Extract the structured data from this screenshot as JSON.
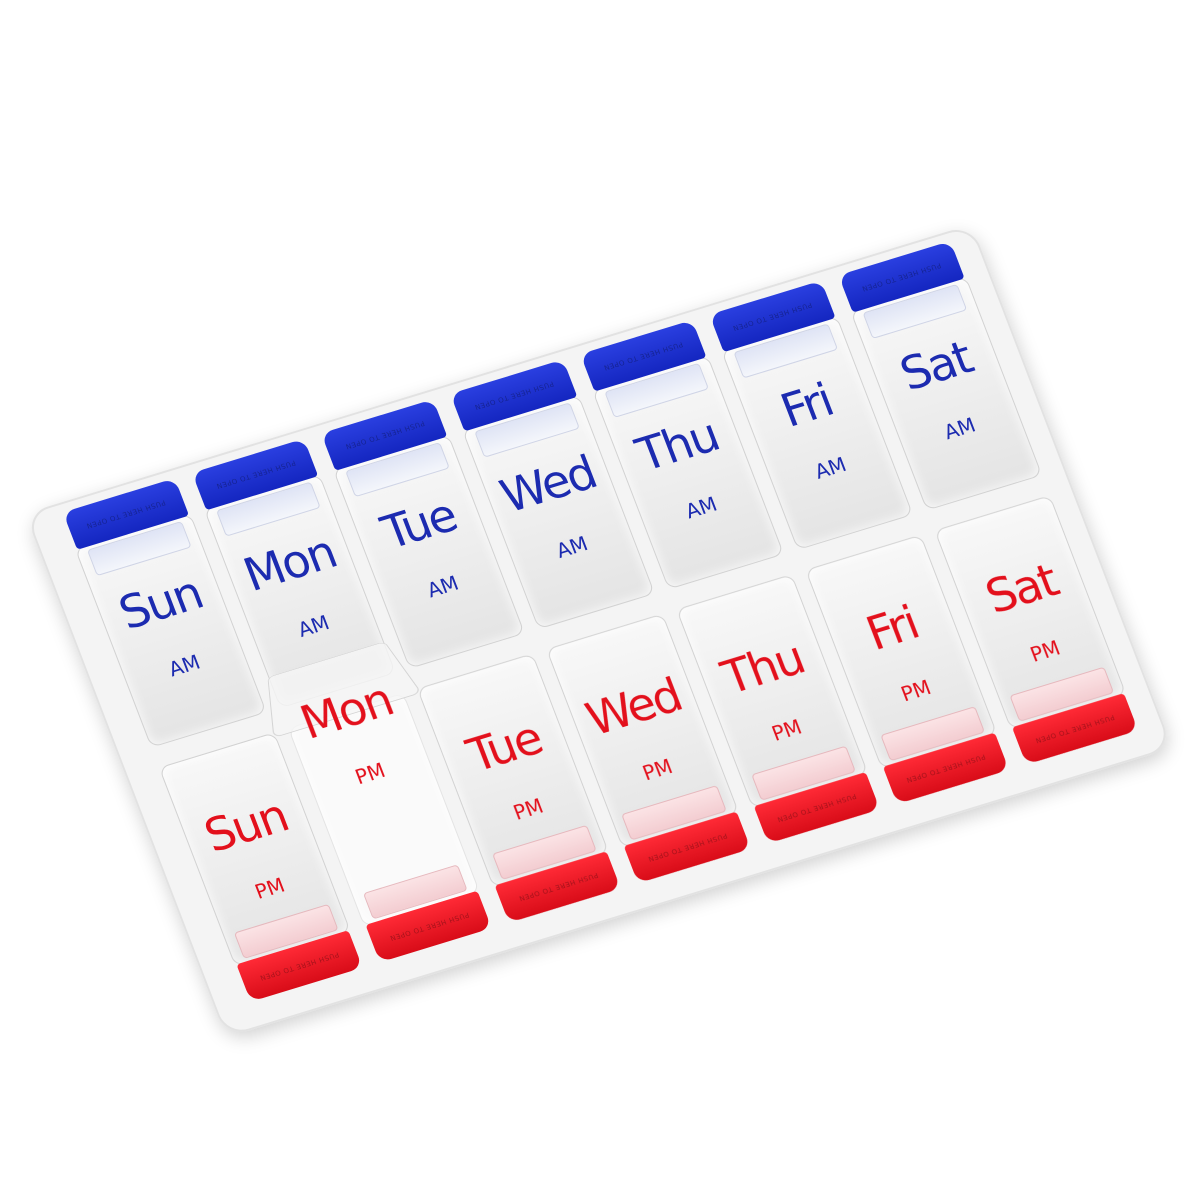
{
  "product": "7-day AM/PM pill organizer",
  "colors": {
    "am_accent": "#1a2fc8",
    "pm_accent": "#e01020",
    "body": "#f4f4f4"
  },
  "tab_emboss": "PUSH HERE TO OPEN",
  "am_row": {
    "period": "AM",
    "days": [
      "Sun",
      "Mon",
      "Tue",
      "Wed",
      "Thu",
      "Fri",
      "Sat"
    ]
  },
  "pm_row": {
    "period": "PM",
    "days": [
      "Sun",
      "Mon",
      "Tue",
      "Wed",
      "Thu",
      "Fri",
      "Sat"
    ],
    "open_compartment": "Mon"
  }
}
